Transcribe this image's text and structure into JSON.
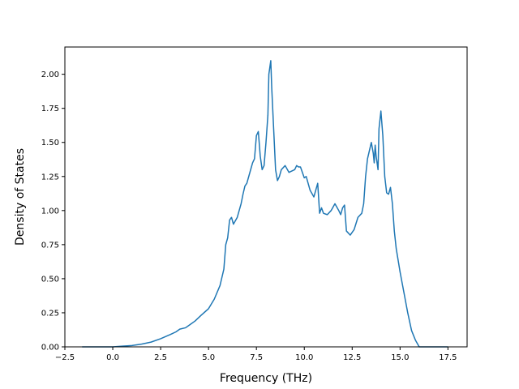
{
  "chart_data": {
    "type": "line",
    "title": "",
    "xlabel": "Frequency (THz)",
    "ylabel": "Density of States",
    "xlim": [
      -2.5,
      18.5
    ],
    "ylim": [
      0.0,
      2.2
    ],
    "x_ticks": [
      -2.5,
      0.0,
      2.5,
      5.0,
      7.5,
      10.0,
      12.5,
      15.0,
      17.5
    ],
    "x_tick_labels": [
      "−2.5",
      "0.0",
      "2.5",
      "5.0",
      "7.5",
      "10.0",
      "12.5",
      "15.0",
      "17.5"
    ],
    "y_ticks": [
      0.0,
      0.25,
      0.5,
      0.75,
      1.0,
      1.25,
      1.5,
      1.75,
      2.0
    ],
    "y_tick_labels": [
      "0.00",
      "0.25",
      "0.50",
      "0.75",
      "1.00",
      "1.25",
      "1.50",
      "1.75",
      "2.00"
    ],
    "grid": false,
    "legend": "none",
    "series": [
      {
        "color": "#1f77b4",
        "x": [
          -1.6,
          0.0,
          0.5,
          1.0,
          1.5,
          2.0,
          2.5,
          3.0,
          3.3,
          3.5,
          3.8,
          4.0,
          4.3,
          4.6,
          5.0,
          5.3,
          5.6,
          5.8,
          5.9,
          6.0,
          6.1,
          6.2,
          6.3,
          6.5,
          6.7,
          6.8,
          6.9,
          7.0,
          7.2,
          7.3,
          7.4,
          7.5,
          7.6,
          7.7,
          7.8,
          7.9,
          8.0,
          8.1,
          8.15,
          8.25,
          8.3,
          8.4,
          8.5,
          8.6,
          8.7,
          8.8,
          9.0,
          9.2,
          9.5,
          9.6,
          9.7,
          9.8,
          10.0,
          10.1,
          10.2,
          10.3,
          10.5,
          10.6,
          10.7,
          10.8,
          10.9,
          11.0,
          11.2,
          11.4,
          11.6,
          11.8,
          11.9,
          12.0,
          12.1,
          12.2,
          12.4,
          12.6,
          12.8,
          13.0,
          13.1,
          13.2,
          13.3,
          13.5,
          13.6,
          13.65,
          13.7,
          13.75,
          13.85,
          13.9,
          14.0,
          14.1,
          14.2,
          14.3,
          14.4,
          14.5,
          14.6,
          14.7,
          14.8,
          15.0,
          15.2,
          15.4,
          15.6,
          15.8,
          16.0,
          16.2,
          17.5
        ],
        "y": [
          0.0,
          0.0,
          0.005,
          0.01,
          0.02,
          0.035,
          0.06,
          0.09,
          0.11,
          0.13,
          0.14,
          0.16,
          0.19,
          0.23,
          0.28,
          0.35,
          0.45,
          0.57,
          0.75,
          0.8,
          0.93,
          0.95,
          0.9,
          0.95,
          1.05,
          1.12,
          1.18,
          1.2,
          1.3,
          1.35,
          1.38,
          1.55,
          1.58,
          1.4,
          1.3,
          1.33,
          1.5,
          1.7,
          2.0,
          2.1,
          1.9,
          1.6,
          1.3,
          1.22,
          1.25,
          1.3,
          1.33,
          1.28,
          1.3,
          1.33,
          1.32,
          1.32,
          1.24,
          1.25,
          1.2,
          1.15,
          1.1,
          1.15,
          1.2,
          0.98,
          1.02,
          0.98,
          0.97,
          1.0,
          1.05,
          1.0,
          0.97,
          1.02,
          1.04,
          0.85,
          0.82,
          0.86,
          0.95,
          0.98,
          1.05,
          1.25,
          1.38,
          1.5,
          1.42,
          1.35,
          1.48,
          1.4,
          1.3,
          1.6,
          1.73,
          1.55,
          1.25,
          1.13,
          1.12,
          1.17,
          1.05,
          0.85,
          0.72,
          0.55,
          0.4,
          0.25,
          0.12,
          0.05,
          0.0,
          0.0,
          0.0
        ]
      }
    ]
  }
}
